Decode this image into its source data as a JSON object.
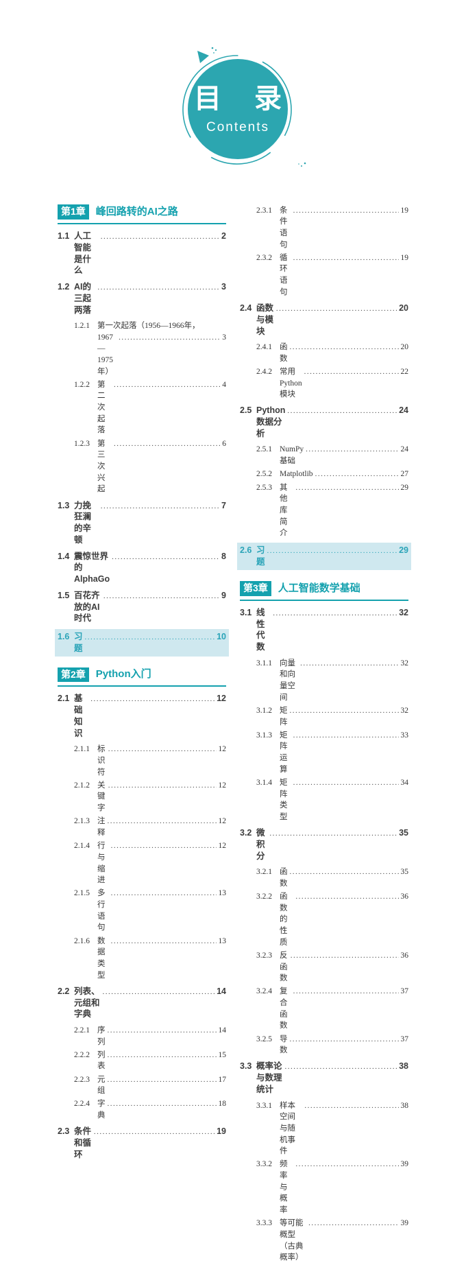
{
  "badge": {
    "title_cn": "目　录",
    "title_en": "Contents"
  },
  "colors": {
    "accent": "#2ca6b0",
    "chapter": "#14a1ae",
    "highlight_bg": "#cfe8ef",
    "highlight_fg": "#2ba4b8",
    "text": "#3c3c3c"
  },
  "columns": [
    {
      "entries": [
        {
          "type": "chapter",
          "num": "第1章",
          "title": "峰回路转的AI之路"
        },
        {
          "type": "item",
          "level": 1,
          "no": "1.1",
          "title": "人工智能是什么",
          "page": "2"
        },
        {
          "type": "item",
          "level": 1,
          "no": "1.2",
          "title": "AI的三起两落",
          "page": "3"
        },
        {
          "type": "item2",
          "level": 2,
          "no": "1.2.1",
          "line1": "第一次起落（1956—1966年，",
          "line2": "1967—1975年）",
          "page": "3"
        },
        {
          "type": "item",
          "level": 2,
          "no": "1.2.2",
          "title": "第二次起落",
          "page": "4"
        },
        {
          "type": "item",
          "level": 2,
          "no": "1.2.3",
          "title": "第三次兴起",
          "page": "6"
        },
        {
          "type": "item",
          "level": 1,
          "no": "1.3",
          "title": "力挽狂澜的辛顿",
          "page": "7"
        },
        {
          "type": "item",
          "level": 1,
          "no": "1.4",
          "title": "震惊世界的AlphaGo",
          "page": "8"
        },
        {
          "type": "item",
          "level": 1,
          "no": "1.5",
          "title": "百花齐放的AI时代",
          "page": "9"
        },
        {
          "type": "item",
          "level": 1,
          "no": "1.6",
          "title": "习题",
          "page": "10",
          "highlight": true
        },
        {
          "type": "chapter",
          "num": "第2章",
          "title": "Python入门"
        },
        {
          "type": "item",
          "level": 1,
          "no": "2.1",
          "title": "基础知识",
          "page": "12"
        },
        {
          "type": "item",
          "level": 2,
          "no": "2.1.1",
          "title": "标识符",
          "page": "12"
        },
        {
          "type": "item",
          "level": 2,
          "no": "2.1.2",
          "title": "关键字",
          "page": "12"
        },
        {
          "type": "item",
          "level": 2,
          "no": "2.1.3",
          "title": "注释",
          "page": "12"
        },
        {
          "type": "item",
          "level": 2,
          "no": "2.1.4",
          "title": "行与缩进",
          "page": "12"
        },
        {
          "type": "item",
          "level": 2,
          "no": "2.1.5",
          "title": "多行语句",
          "page": "13"
        },
        {
          "type": "item",
          "level": 2,
          "no": "2.1.6",
          "title": "数据类型",
          "page": "13"
        },
        {
          "type": "item",
          "level": 1,
          "no": "2.2",
          "title": "列表、元组和字典",
          "page": "14"
        },
        {
          "type": "item",
          "level": 2,
          "no": "2.2.1",
          "title": "序列",
          "page": "14"
        },
        {
          "type": "item",
          "level": 2,
          "no": "2.2.2",
          "title": "列表",
          "page": "15"
        },
        {
          "type": "item",
          "level": 2,
          "no": "2.2.3",
          "title": "元组",
          "page": "17"
        },
        {
          "type": "item",
          "level": 2,
          "no": "2.2.4",
          "title": "字典",
          "page": "18"
        },
        {
          "type": "item",
          "level": 1,
          "no": "2.3",
          "title": "条件和循环",
          "page": "19"
        }
      ]
    },
    {
      "entries": [
        {
          "type": "item",
          "level": 2,
          "no": "2.3.1",
          "title": "条件语句",
          "page": "19"
        },
        {
          "type": "item",
          "level": 2,
          "no": "2.3.2",
          "title": "循环语句",
          "page": "19"
        },
        {
          "type": "item",
          "level": 1,
          "no": "2.4",
          "title": "函数与模块",
          "page": "20"
        },
        {
          "type": "item",
          "level": 2,
          "no": "2.4.1",
          "title": "函数",
          "page": "20"
        },
        {
          "type": "item",
          "level": 2,
          "no": "2.4.2",
          "title": "常用Python模块",
          "page": "22"
        },
        {
          "type": "item",
          "level": 1,
          "no": "2.5",
          "title": "Python数据分析",
          "page": "24"
        },
        {
          "type": "item",
          "level": 2,
          "no": "2.5.1",
          "title": "NumPy基础",
          "page": "24"
        },
        {
          "type": "item",
          "level": 2,
          "no": "2.5.2",
          "title": "Matplotlib",
          "page": "27"
        },
        {
          "type": "item",
          "level": 2,
          "no": "2.5.3",
          "title": "其他库简介",
          "page": "29"
        },
        {
          "type": "item",
          "level": 1,
          "no": "2.6",
          "title": "习题",
          "page": "29",
          "highlight": true
        },
        {
          "type": "chapter",
          "num": "第3章",
          "title": "人工智能数学基础"
        },
        {
          "type": "item",
          "level": 1,
          "no": "3.1",
          "title": "线性代数",
          "page": "32"
        },
        {
          "type": "item",
          "level": 2,
          "no": "3.1.1",
          "title": "向量和向量空间",
          "page": "32"
        },
        {
          "type": "item",
          "level": 2,
          "no": "3.1.2",
          "title": "矩阵",
          "page": "32"
        },
        {
          "type": "item",
          "level": 2,
          "no": "3.1.3",
          "title": "矩阵运算",
          "page": "33"
        },
        {
          "type": "item",
          "level": 2,
          "no": "3.1.4",
          "title": "矩阵类型",
          "page": "34"
        },
        {
          "type": "item",
          "level": 1,
          "no": "3.2",
          "title": "微积分",
          "page": "35"
        },
        {
          "type": "item",
          "level": 2,
          "no": "3.2.1",
          "title": "函数",
          "page": "35"
        },
        {
          "type": "item",
          "level": 2,
          "no": "3.2.2",
          "title": "函数的性质",
          "page": "36"
        },
        {
          "type": "item",
          "level": 2,
          "no": "3.2.3",
          "title": "反函数",
          "page": "36"
        },
        {
          "type": "item",
          "level": 2,
          "no": "3.2.4",
          "title": "复合函数",
          "page": "37"
        },
        {
          "type": "item",
          "level": 2,
          "no": "3.2.5",
          "title": "导数",
          "page": "37"
        },
        {
          "type": "item",
          "level": 1,
          "no": "3.3",
          "title": "概率论与数理统计",
          "page": "38"
        },
        {
          "type": "item",
          "level": 2,
          "no": "3.3.1",
          "title": "样本空间与随机事件",
          "page": "38"
        },
        {
          "type": "item",
          "level": 2,
          "no": "3.3.2",
          "title": "频率与概率",
          "page": "39"
        },
        {
          "type": "item",
          "level": 2,
          "no": "3.3.3",
          "title": "等可能概型（古典概率）",
          "page": "39"
        }
      ]
    }
  ]
}
